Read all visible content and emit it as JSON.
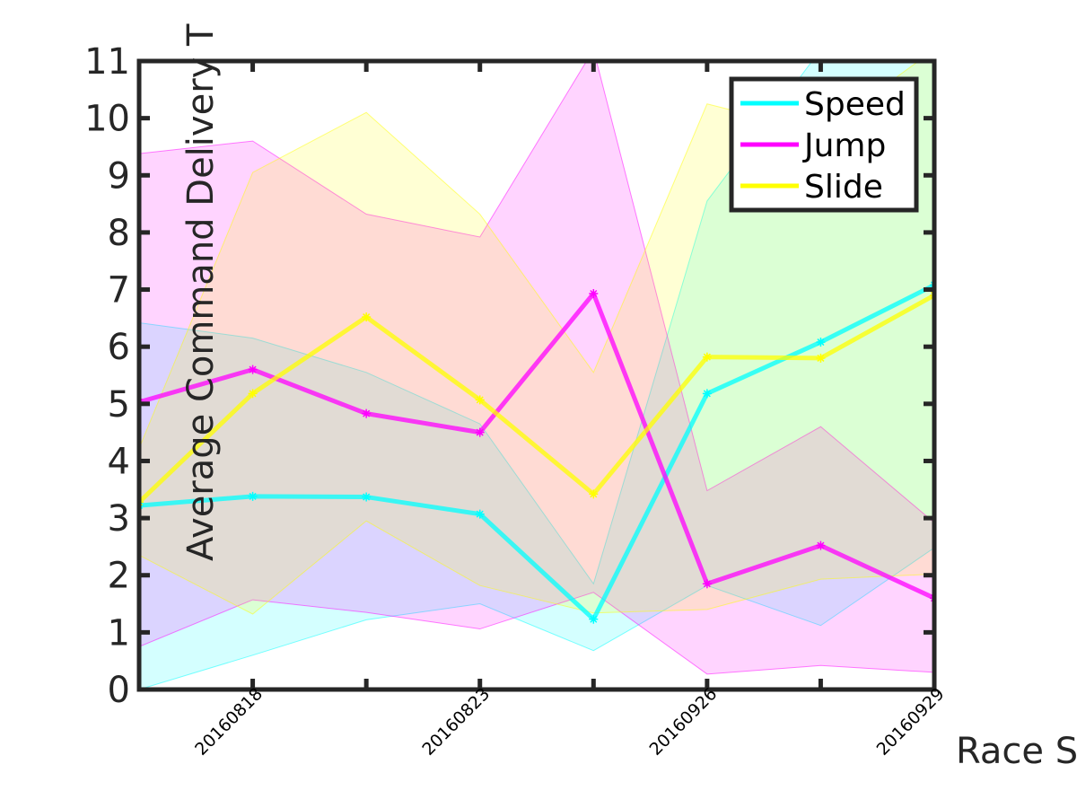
{
  "chart_data": {
    "type": "line",
    "xlabel": "Race S",
    "ylabel": "Average Command Delivery T",
    "ylim": [
      0,
      11
    ],
    "yticks": [
      0,
      1,
      2,
      3,
      4,
      5,
      6,
      7,
      8,
      9,
      10,
      11
    ],
    "x_positions": [
      1,
      2,
      3,
      4,
      5,
      6,
      7,
      8
    ],
    "x_tick_labels": [
      {
        "pos": 2,
        "label": "20160818"
      },
      {
        "pos": 4,
        "label": "20160823"
      },
      {
        "pos": 6,
        "label": "20160926"
      },
      {
        "pos": 8,
        "label": "20160929"
      }
    ],
    "grid": false,
    "legend_position": "top-right",
    "series": [
      {
        "name": "Speed",
        "color": "#00ffff",
        "values": [
          3.22,
          3.38,
          3.37,
          3.07,
          1.23,
          5.18,
          6.08,
          7.08
        ],
        "upper": [
          6.42,
          6.15,
          5.55,
          4.65,
          1.85,
          8.55,
          11.2,
          11.2
        ],
        "lower": [
          0.0,
          0.6,
          1.22,
          1.5,
          0.68,
          1.82,
          1.12,
          2.48
        ]
      },
      {
        "name": "Jump",
        "color": "#ff00ff",
        "values": [
          5.03,
          5.6,
          4.83,
          4.5,
          6.93,
          1.85,
          2.52,
          1.6
        ],
        "upper": [
          9.38,
          9.6,
          8.32,
          7.92,
          11.2,
          3.48,
          4.6,
          2.92
        ],
        "lower": [
          0.75,
          1.57,
          1.35,
          1.06,
          1.7,
          0.27,
          0.42,
          0.3
        ]
      },
      {
        "name": "Slide",
        "color": "#ffff00",
        "values": [
          3.28,
          5.18,
          6.52,
          5.07,
          3.42,
          5.82,
          5.8,
          6.9
        ],
        "upper": [
          4.22,
          9.05,
          10.1,
          8.32,
          5.55,
          10.25,
          9.75,
          11.2
        ],
        "lower": [
          2.35,
          1.32,
          2.95,
          1.82,
          1.34,
          1.4,
          1.93,
          2.02
        ]
      }
    ]
  }
}
